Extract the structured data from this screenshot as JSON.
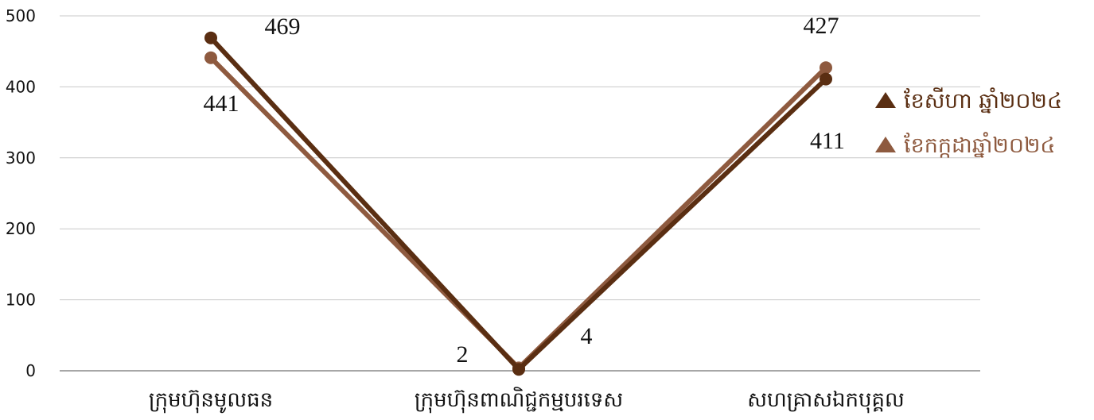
{
  "chart_data": {
    "type": "line",
    "title": "",
    "xlabel": "",
    "ylabel": "",
    "ylim": [
      0,
      500
    ],
    "yticks": [
      0,
      100,
      200,
      300,
      400,
      500
    ],
    "grid": true,
    "legend_position": "right",
    "categories": [
      "ក្រុមហ៊ុនមូលធន",
      "ក្រុមហ៊ុនពាណិជ្ជកម្មបរទេស",
      "សហគ្រាសឯកបុគ្គល"
    ],
    "series": [
      {
        "name": "ខែសីហា ឆ្នាំ២០២៤",
        "values": [
          469,
          2,
          411
        ],
        "color": "#5a2e12"
      },
      {
        "name": "ខែកក្កដាឆ្នាំ២០២៤",
        "values": [
          441,
          4,
          427
        ],
        "color": "#8e5a3f"
      }
    ]
  }
}
